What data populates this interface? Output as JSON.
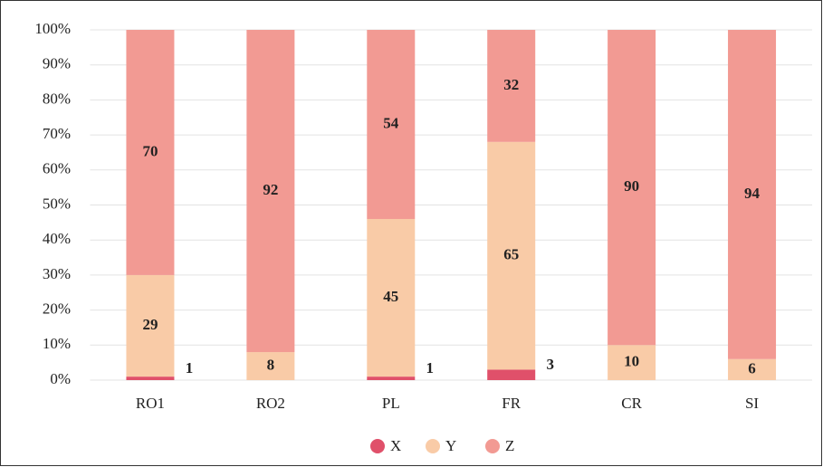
{
  "chart_data": {
    "type": "stacked_bar",
    "categories": [
      "RO1",
      "RO2",
      "PL",
      "FR",
      "CR",
      "SI"
    ],
    "series": [
      {
        "name": "X",
        "color": "#e0506a",
        "values": [
          1,
          null,
          1,
          3,
          null,
          null
        ]
      },
      {
        "name": "Y",
        "color": "#f9cba7",
        "values": [
          29,
          8,
          45,
          65,
          10,
          6
        ]
      },
      {
        "name": "Z",
        "color": "#f29a93",
        "values": [
          70,
          92,
          54,
          32,
          90,
          94
        ]
      }
    ],
    "ylim": [
      0,
      100
    ],
    "yticks": [
      {
        "value": 0,
        "label": "0%"
      },
      {
        "value": 10,
        "label": "10%"
      },
      {
        "value": 20,
        "label": "20%"
      },
      {
        "value": 30,
        "label": "30%"
      },
      {
        "value": 40,
        "label": "40%"
      },
      {
        "value": 50,
        "label": "50%"
      },
      {
        "value": 60,
        "label": "60%"
      },
      {
        "value": 70,
        "label": "70%"
      },
      {
        "value": 80,
        "label": "80%"
      },
      {
        "value": 90,
        "label": "90%"
      },
      {
        "value": 100,
        "label": "100%"
      }
    ],
    "grid": true,
    "legend": "bottom"
  }
}
